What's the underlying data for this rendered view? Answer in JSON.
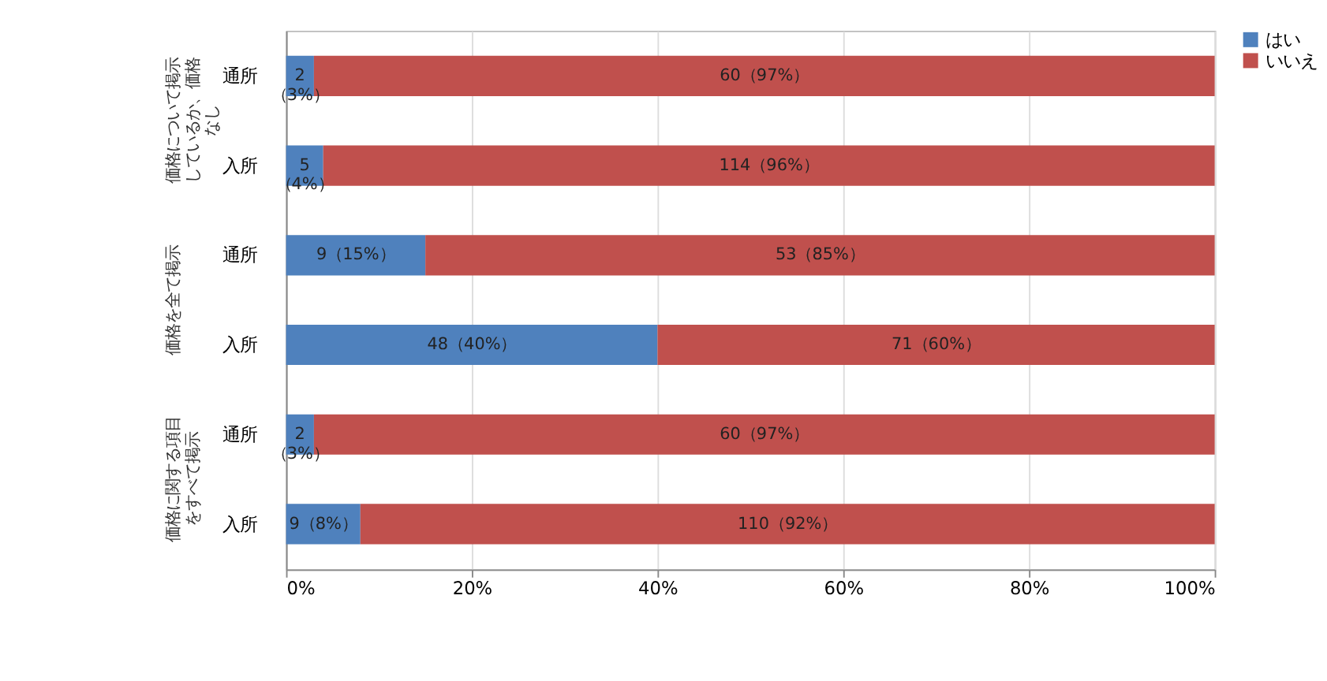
{
  "chart_data": {
    "type": "bar",
    "orientation": "horizontal",
    "stacked": true,
    "categories": [
      "通所",
      "入所",
      "通所",
      "入所",
      "通所",
      "入所"
    ],
    "series": [
      {
        "name": "はい",
        "color": "#4f81bd",
        "values": [
          3,
          4,
          15,
          40,
          3,
          8
        ],
        "value_labels": [
          "2（3%）",
          "5（4%）",
          "9（15%）",
          "48（40%）",
          "2（3%）",
          "9（8%）"
        ]
      },
      {
        "name": "いいえ",
        "color": "#c0504d",
        "values": [
          97,
          96,
          85,
          60,
          97,
          92
        ],
        "value_labels": [
          "60（97%）",
          "114（96%）",
          "53（85%）",
          "71（60%）",
          "60（97%）",
          "110（92%）"
        ]
      }
    ],
    "annotations": [
      "価格について掲示しているか、価格なし",
      "価格を全て掲示",
      "価格に関する項目をすべて掲示"
    ],
    "xlim": [
      0,
      100
    ],
    "xticks": [
      {
        "value": 0,
        "label": "0%"
      },
      {
        "value": 20,
        "label": "20%"
      },
      {
        "value": 40,
        "label": "40%"
      },
      {
        "value": 60,
        "label": "60%"
      },
      {
        "value": 80,
        "label": "80%"
      },
      {
        "value": 100,
        "label": "100%"
      }
    ],
    "grid": "x",
    "legend": "right"
  }
}
